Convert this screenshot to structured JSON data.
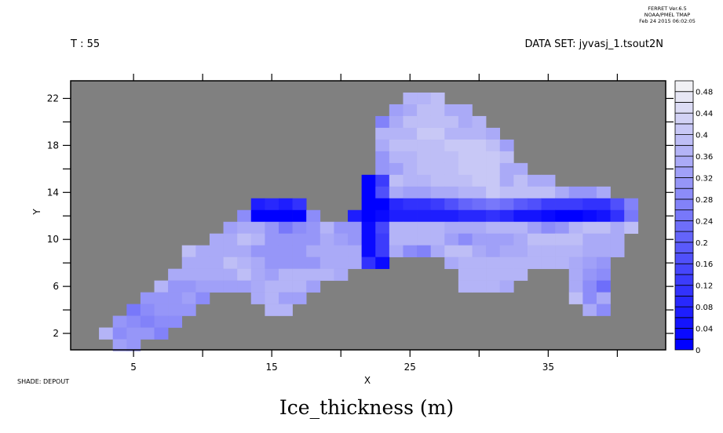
{
  "header": {
    "ferret_line1": "FERRET  Ver.6.5",
    "ferret_line2": "NOAA/PMEL TMAP",
    "ferret_line3": "Feb 24 2015 06:02:05",
    "time_label": "T : 55",
    "dataset_label": "DATA SET: jyvasj_1.tsout2N"
  },
  "footer": {
    "shade_label": "SHADE: DEPOUT",
    "title": "Ice_thickness (m)"
  },
  "colors": {
    "background_missing": "#808080",
    "low": "#0000ff",
    "high": "#f0f0f4"
  },
  "chart_data": {
    "type": "heatmap",
    "xlabel": "X",
    "ylabel": "Y",
    "xlim": [
      0.45,
      43.5
    ],
    "ylim": [
      0.6,
      23.5
    ],
    "x_ticks": [
      5,
      15,
      25,
      35
    ],
    "y_ticks": [
      2,
      6,
      10,
      14,
      18,
      22
    ],
    "colorbar": {
      "min": 0,
      "max": 0.5,
      "step": 0.02,
      "labels": [
        "0",
        "0.04",
        "0.08",
        "0.12",
        "0.16",
        "0.2",
        "0.24",
        "0.28",
        "0.32",
        "0.36",
        "0.4",
        "0.44",
        "0.48"
      ]
    },
    "rows": [
      {
        "y": 22,
        "x0": 25,
        "values": [
          0.36,
          0.36,
          0.38
        ]
      },
      {
        "y": 21,
        "x0": 24,
        "values": [
          0.32,
          0.34,
          0.38,
          0.38,
          0.34,
          0.34
        ]
      },
      {
        "y": 20,
        "x0": 23,
        "values": [
          0.26,
          0.34,
          0.38,
          0.38,
          0.38,
          0.38,
          0.34,
          0.36
        ]
      },
      {
        "y": 19,
        "x0": 23,
        "values": [
          0.36,
          0.36,
          0.36,
          0.4,
          0.4,
          0.36,
          0.36,
          0.36,
          0.34
        ]
      },
      {
        "y": 18,
        "x0": 23,
        "values": [
          0.34,
          0.38,
          0.38,
          0.38,
          0.38,
          0.4,
          0.4,
          0.4,
          0.38,
          0.32
        ]
      },
      {
        "y": 17,
        "x0": 23,
        "values": [
          0.3,
          0.36,
          0.36,
          0.38,
          0.38,
          0.38,
          0.4,
          0.4,
          0.4,
          0.38
        ]
      },
      {
        "y": 16,
        "x0": 23,
        "values": [
          0.3,
          0.32,
          0.36,
          0.38,
          0.38,
          0.38,
          0.4,
          0.4,
          0.4,
          0.34,
          0.34
        ]
      },
      {
        "y": 15,
        "x0": 22,
        "values": [
          0.0,
          0.12,
          0.38,
          0.36,
          0.36,
          0.38,
          0.38,
          0.38,
          0.4,
          0.4,
          0.34,
          0.38,
          0.34,
          0.34
        ]
      },
      {
        "y": 14,
        "x0": 22,
        "values": [
          0.0,
          0.16,
          0.34,
          0.32,
          0.32,
          0.34,
          0.34,
          0.36,
          0.36,
          0.4,
          0.38,
          0.38,
          0.38,
          0.38,
          0.34,
          0.3,
          0.3,
          0.34
        ]
      },
      {
        "y": 13,
        "x0": 14,
        "values": [
          0.06,
          0.08,
          0.06,
          0.1,
          null,
          null,
          null,
          null,
          0.0,
          0.0,
          0.08,
          0.1,
          0.1,
          0.12,
          0.16,
          0.2,
          0.22,
          0.24,
          0.22,
          0.18,
          0.16,
          0.12,
          0.12,
          0.12,
          0.1,
          0.1,
          0.16,
          0.26
        ]
      },
      {
        "y": 12,
        "x0": 13,
        "values": [
          0.28,
          0.0,
          0.0,
          0.0,
          0.0,
          0.28,
          null,
          null,
          0.06,
          0.0,
          0.02,
          0.06,
          0.06,
          0.06,
          0.06,
          0.06,
          0.08,
          0.08,
          0.1,
          0.08,
          0.04,
          0.04,
          0.02,
          0.0,
          0.0,
          0.02,
          0.04,
          0.1,
          0.24
        ]
      },
      {
        "y": 11,
        "x0": 12,
        "values": [
          0.32,
          0.34,
          0.34,
          0.3,
          0.24,
          0.28,
          0.3,
          0.36,
          0.3,
          0.3,
          0.02,
          0.14,
          0.36,
          0.36,
          0.36,
          0.36,
          0.34,
          0.34,
          0.34,
          0.36,
          0.36,
          0.36,
          0.32,
          0.28,
          0.3,
          0.36,
          0.38,
          0.38,
          0.34,
          0.38
        ]
      },
      {
        "y": 10,
        "x0": 11,
        "values": [
          0.34,
          0.34,
          0.38,
          0.36,
          0.3,
          0.3,
          0.3,
          0.3,
          0.34,
          0.32,
          0.3,
          0.02,
          0.12,
          0.36,
          0.36,
          0.36,
          0.36,
          0.32,
          0.28,
          0.32,
          0.32,
          0.32,
          0.34,
          0.38,
          0.38,
          0.38,
          0.38,
          0.34,
          0.34,
          0.34
        ]
      },
      {
        "y": 9,
        "x0": 9,
        "values": [
          0.38,
          0.34,
          0.34,
          0.34,
          0.34,
          0.3,
          0.3,
          0.3,
          0.3,
          0.34,
          0.34,
          0.34,
          0.34,
          0.02,
          0.12,
          0.34,
          0.28,
          0.26,
          0.34,
          0.38,
          0.38,
          0.34,
          0.32,
          0.34,
          0.34,
          0.36,
          0.36,
          0.36,
          0.36,
          0.34,
          0.34,
          0.34
        ]
      },
      {
        "y": 8,
        "x0": 9,
        "values": [
          0.34,
          0.34,
          0.34,
          0.38,
          0.36,
          0.34,
          0.3,
          0.3,
          0.3,
          0.3,
          0.34,
          0.34,
          0.34,
          0.1,
          0.02,
          null,
          null,
          null,
          null,
          0.34,
          0.36,
          0.36,
          0.36,
          0.36,
          0.36,
          0.36,
          0.36,
          0.36,
          0.34,
          0.32,
          0.3
        ]
      },
      {
        "y": 7,
        "x0": 8,
        "values": [
          0.34,
          0.34,
          0.34,
          0.34,
          0.34,
          0.38,
          0.34,
          0.32,
          0.36,
          0.36,
          0.36,
          0.36,
          0.34,
          null,
          null,
          null,
          null,
          null,
          null,
          null,
          null,
          0.36,
          0.36,
          0.36,
          0.36,
          0.36,
          null,
          null,
          null,
          0.34,
          0.3,
          0.28
        ]
      },
      {
        "y": 6,
        "x0": 7,
        "values": [
          0.36,
          0.3,
          0.3,
          0.32,
          0.32,
          0.32,
          0.32,
          0.34,
          0.36,
          0.36,
          0.36,
          0.32,
          null,
          null,
          null,
          null,
          null,
          null,
          null,
          null,
          null,
          null,
          0.36,
          0.36,
          0.36,
          0.34,
          null,
          null,
          null,
          null,
          0.34,
          0.28,
          0.22
        ]
      },
      {
        "y": 5,
        "x0": 6,
        "values": [
          0.3,
          0.3,
          0.3,
          0.32,
          0.28,
          null,
          null,
          null,
          0.34,
          0.36,
          0.32,
          0.32,
          null,
          null,
          null,
          null,
          null,
          null,
          null,
          null,
          null,
          null,
          null,
          null,
          null,
          null,
          null,
          null,
          null,
          null,
          null,
          0.38,
          0.28,
          0.34
        ]
      },
      {
        "y": 4,
        "x0": 5,
        "values": [
          0.24,
          0.28,
          0.3,
          0.3,
          0.3,
          null,
          null,
          null,
          null,
          null,
          0.36,
          0.36,
          null,
          null,
          null,
          null,
          null,
          null,
          null,
          null,
          null,
          null,
          null,
          null,
          null,
          null,
          null,
          null,
          null,
          null,
          null,
          null,
          null,
          0.34,
          0.28
        ]
      },
      {
        "y": 3,
        "x0": 4,
        "values": [
          0.3,
          0.28,
          0.26,
          0.28,
          0.28
        ]
      },
      {
        "y": 2,
        "x0": 3,
        "values": [
          0.36,
          0.28,
          0.3,
          0.3,
          0.26
        ]
      },
      {
        "y": 1,
        "x0": 4,
        "values": [
          0.32,
          0.3
        ]
      }
    ]
  }
}
